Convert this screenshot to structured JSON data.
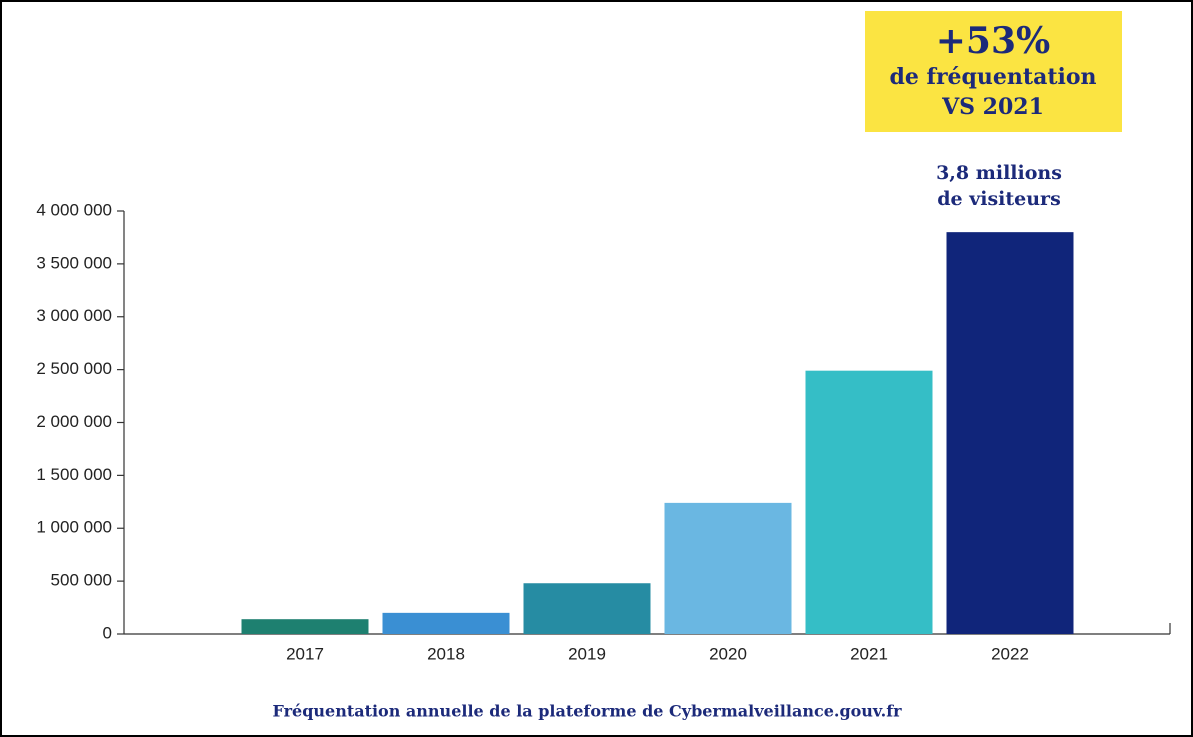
{
  "chart_data": {
    "type": "bar",
    "title": "Fréquentation annuelle de la plateforme de Cybermalveillance.gouv.fr",
    "categories": [
      "2017",
      "2018",
      "2019",
      "2020",
      "2021",
      "2022"
    ],
    "values": [
      140000,
      200000,
      480000,
      1240000,
      2490000,
      3800000
    ],
    "colors": [
      "#1e8070",
      "#3a8fd3",
      "#268ca3",
      "#6ab7e2",
      "#35bec6",
      "#10257a"
    ],
    "ylim": [
      0,
      4000000
    ],
    "yticks": [
      0,
      {
        "value": 500000,
        "label": "500 000"
      },
      {
        "value": 1000000,
        "label": "1 000 000"
      },
      {
        "value": 1500000,
        "label": "1 500 000"
      },
      {
        "value": 2000000,
        "label": "2 000 000"
      },
      {
        "value": 2500000,
        "label": "2 500 000"
      },
      {
        "value": 3000000,
        "label": "3 000 000"
      },
      {
        "value": 3500000,
        "label": "3 500 000"
      },
      {
        "value": 4000000,
        "label": "4 000 000"
      }
    ],
    "grid": false,
    "highlight": [
      "+53%",
      "de fréquentation",
      "VS 2021"
    ],
    "annotation": [
      "3,8 millions",
      "de visiteurs"
    ]
  }
}
